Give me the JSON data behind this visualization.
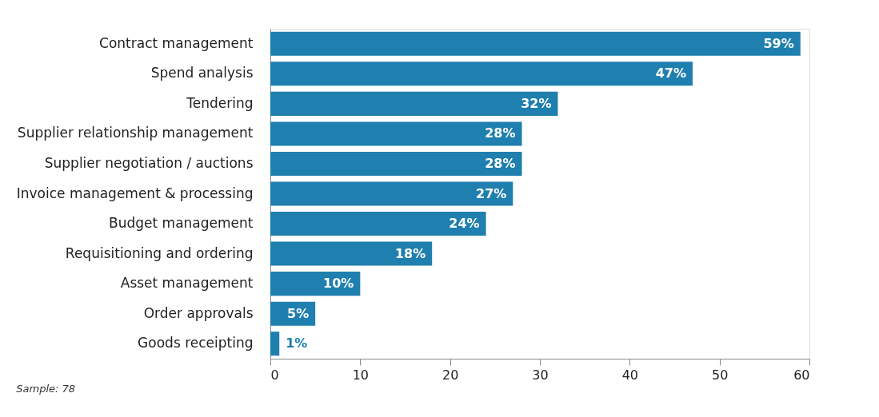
{
  "chart_data": {
    "type": "bar",
    "orientation": "horizontal",
    "categories": [
      "Contract management",
      "Spend analysis",
      "Tendering",
      "Supplier relationship management",
      "Supplier negotiation / auctions",
      "Invoice management & processing",
      "Budget management",
      "Requisitioning and ordering",
      "Asset management",
      "Order approvals",
      "Goods receipting"
    ],
    "values": [
      59,
      47,
      32,
      28,
      28,
      27,
      24,
      18,
      10,
      5,
      1
    ],
    "value_labels": [
      "59%",
      "47%",
      "32%",
      "28%",
      "28%",
      "27%",
      "24%",
      "18%",
      "10%",
      "5%",
      "1%"
    ],
    "color": "#1f7fae",
    "xlim": [
      0,
      60
    ],
    "xticks": [
      0,
      10,
      20,
      30,
      40,
      50,
      60
    ],
    "grid": false,
    "annotations": [
      "Sample: 78"
    ]
  }
}
